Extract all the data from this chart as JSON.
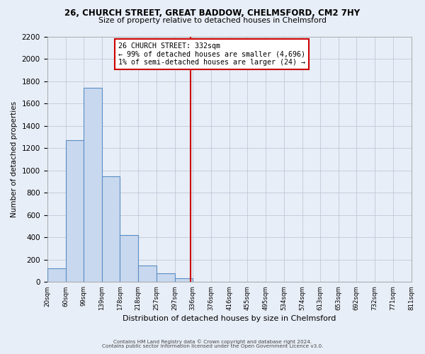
{
  "title_line1": "26, CHURCH STREET, GREAT BADDOW, CHELMSFORD, CM2 7HY",
  "title_line2": "Size of property relative to detached houses in Chelmsford",
  "xlabel": "Distribution of detached houses by size in Chelmsford",
  "ylabel": "Number of detached properties",
  "bin_edges": [
    20,
    60,
    99,
    139,
    178,
    218,
    257,
    297,
    336,
    376,
    416,
    455,
    495,
    534,
    574,
    613,
    653,
    692,
    732,
    771,
    811
  ],
  "bin_labels": [
    "20sqm",
    "60sqm",
    "99sqm",
    "139sqm",
    "178sqm",
    "218sqm",
    "257sqm",
    "297sqm",
    "336sqm",
    "376sqm",
    "416sqm",
    "455sqm",
    "495sqm",
    "534sqm",
    "574sqm",
    "613sqm",
    "653sqm",
    "692sqm",
    "732sqm",
    "771sqm",
    "811sqm"
  ],
  "counts": [
    120,
    1270,
    1740,
    950,
    420,
    150,
    80,
    35,
    0,
    0,
    0,
    0,
    0,
    0,
    0,
    0,
    0,
    0,
    0,
    0
  ],
  "bar_color": "#c8d8ee",
  "bar_edge_color": "#5b8ec4",
  "grid_color": "#c0c8d8",
  "background_color": "#e8eef7",
  "property_line_x": 332,
  "property_line_color": "#cc0000",
  "annotation_line1": "26 CHURCH STREET: 332sqm",
  "annotation_line2": "← 99% of detached houses are smaller (4,696)",
  "annotation_line3": "1% of semi-detached houses are larger (24) →",
  "annotation_box_color": "#ffffff",
  "annotation_box_edge": "#cc0000",
  "ylim": [
    0,
    2200
  ],
  "yticks": [
    0,
    200,
    400,
    600,
    800,
    1000,
    1200,
    1400,
    1600,
    1800,
    2000,
    2200
  ],
  "footer_line1": "Contains HM Land Registry data © Crown copyright and database right 2024.",
  "footer_line2": "Contains public sector information licensed under the Open Government Licence v3.0."
}
